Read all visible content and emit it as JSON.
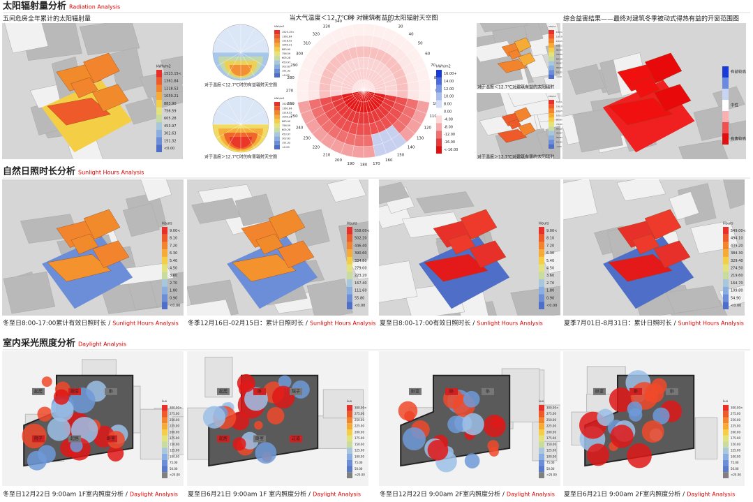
{
  "sections": [
    {
      "title": "太阳辐射量分析",
      "title_en": "Radiation Analysis"
    },
    {
      "title": "自然日照时长分析",
      "title_en": "Sunlight Hours Analysis"
    },
    {
      "title": "室内采光照度分析",
      "title_en": "Daylight Analysis"
    }
  ],
  "radiation": {
    "caption": "五间危房全年累计的太阳辐射量",
    "legend": {
      "unit": "kWh/m2",
      "labels": [
        "1523.15<",
        "1361.84",
        "1218.52",
        "1059.21",
        "883.90",
        "756.59",
        "605.28",
        "453.97",
        "302.63",
        "151.32",
        "<0.00"
      ]
    },
    "sky_small": [
      {
        "caption": "对于温度＜12.7℃时的有益辐射天空图"
      },
      {
        "caption": "对于温度＞12.7℃时的有害辐射天空图"
      }
    ],
    "sky_big": {
      "title": "当大气温度＜12.7℃时 对建筑有益的太阳辐射天空图",
      "angles": [
        "0",
        "10",
        "20",
        "30",
        "40",
        "50",
        "60",
        "70",
        "80",
        "90",
        "100",
        "110",
        "120",
        "130",
        "140",
        "150",
        "160",
        "170",
        "180",
        "190",
        "200",
        "210",
        "220",
        "230",
        "240",
        "250",
        "260",
        "270",
        "280",
        "290",
        "300",
        "310",
        "320",
        "330",
        "340",
        "350"
      ],
      "legend": {
        "unit": "kWh/m2",
        "labels": [
          "16.00+",
          "14.00",
          "12.00",
          "10.00",
          "8.00",
          "0.00",
          "-4.00",
          "-8.00",
          "-12.00",
          "-16.00",
          "<-16.00"
        ]
      }
    },
    "side": [
      {
        "caption": "对于温度＜12.7℃对建筑有益的太阳辐射"
      },
      {
        "caption": "对于温度＞12.7℃对建筑有害的太阳辐射"
      }
    ],
    "result": {
      "caption": "综合益害结果——最终对建筑冬季被动式得热有益的开窗范围图",
      "legend": [
        "有益较高",
        "中性",
        "有害较高"
      ]
    }
  },
  "sunlight": {
    "panels": [
      {
        "caption": "冬至日8:00-17:00累计有效日照时长 /",
        "caption_en": "Sunlight Hours Analysis",
        "legend": {
          "unit": "Hours",
          "labels": [
            "9.00<",
            "8.10",
            "7.20",
            "6.30",
            "5.40",
            "4.50",
            "3.60",
            "2.70",
            "1.80",
            "0.90",
            "<0.00"
          ]
        }
      },
      {
        "caption": "冬季12月16日-02月15日：累计日照时长 /",
        "caption_en": "Sunlight Hours Analysis",
        "legend": {
          "unit": "Hours",
          "labels": [
            "558.00<",
            "502.20",
            "446.40",
            "390.60",
            "334.80",
            "279.00",
            "223.20",
            "167.40",
            "111.60",
            "55.80",
            "<0.00"
          ]
        }
      },
      {
        "caption": "夏至日8:00-17:00有效日照时长  /",
        "caption_en": "Sunlight Hours Analysis",
        "legend": {
          "unit": "Hours",
          "labels": [
            "9.00<",
            "8.10",
            "7.20",
            "6.30",
            "5.40",
            "4.50",
            "3.60",
            "2.70",
            "1.80",
            "0.90",
            "<0.00"
          ]
        }
      },
      {
        "caption": "夏季7月01日-8月31日：累计日照时长 /",
        "caption_en": "Sunlight Hours Analysis",
        "legend": {
          "unit": "Hours",
          "labels": [
            "549.00<",
            "494.10",
            "439.20",
            "384.30",
            "329.40",
            "274.50",
            "219.60",
            "164.70",
            "109.80",
            "54.90",
            "<0.00"
          ]
        }
      }
    ]
  },
  "daylight": {
    "panels": [
      {
        "caption": "冬至日12月22日 9:00am 1F室内照度分析 /",
        "caption_en": "Daylight Analysis",
        "rooms": [
          "起居",
          "厨房",
          "卧",
          "院子",
          "起居",
          "卧室"
        ],
        "legend": {
          "unit": "Lux",
          "labels": [
            "300.00<",
            "275.00",
            "250.00",
            "225.00",
            "200.00",
            "175.00",
            "150.00",
            "125.00",
            "100.00",
            "75.00",
            "50.00",
            "<25.00"
          ]
        }
      },
      {
        "caption": "夏至日6月21日 9:00am 1F 室内照度分析 /",
        "caption_en": "Daylight Analysis",
        "rooms": [
          "起居",
          "卧",
          "院子",
          "起居",
          "卧室",
          "过道"
        ],
        "legend": {
          "unit": "Lux",
          "labels": [
            "300.00<",
            "275.00",
            "250.00",
            "225.00",
            "200.00",
            "175.00",
            "150.00",
            "125.00",
            "100.00",
            "75.00",
            "50.00",
            "<25.00"
          ]
        }
      },
      {
        "caption": "冬至日12月22日 9:00am 2F室内照度分析 /",
        "caption_en": "Daylight Analysis",
        "rooms": [
          "卧室",
          "卧",
          "卧"
        ],
        "legend": {
          "unit": "Lux",
          "labels": [
            "300.00<",
            "275.00",
            "250.00",
            "225.00",
            "200.00",
            "175.00",
            "150.00",
            "125.00",
            "100.00",
            "75.00",
            "50.00",
            "<25.00"
          ]
        }
      },
      {
        "caption": "夏至日6月21日 9:00am 2F室内照度分析 /",
        "caption_en": "Daylight Analysis",
        "rooms": [
          "卧室",
          "卧",
          "卧"
        ],
        "legend": {
          "unit": "Lux",
          "labels": [
            "300.00<",
            "275.00",
            "250.00",
            "225.00",
            "200.00",
            "175.00",
            "150.00",
            "125.00",
            "100.00",
            "75.00",
            "50.00",
            "<25.00"
          ]
        }
      }
    ]
  }
}
